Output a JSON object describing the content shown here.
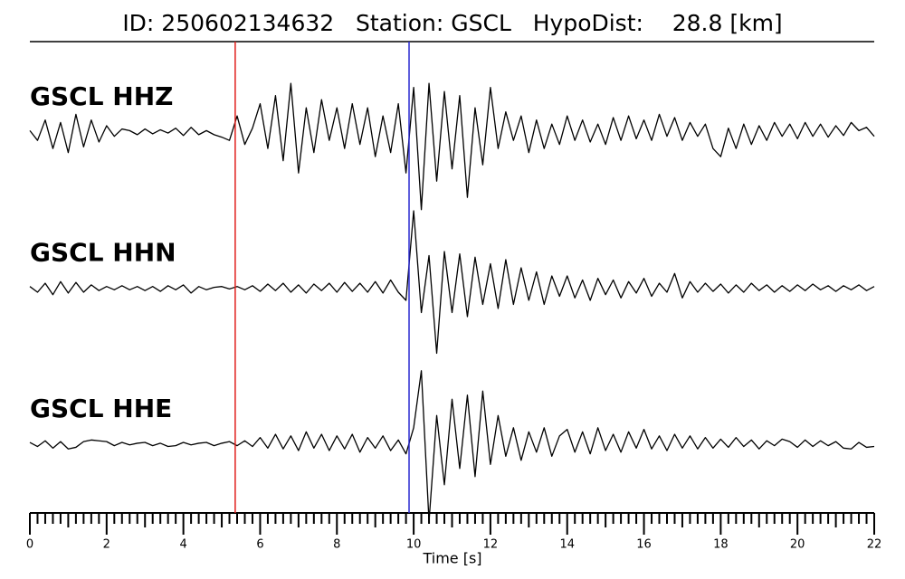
{
  "chart_data": {
    "type": "seismogram",
    "title": "ID: 250602134632   Station: GSCL   HypoDist:    28.8 [km]",
    "xlabel": "Time [s]",
    "xlim": [
      0,
      22
    ],
    "xticks": [
      0,
      2,
      4,
      6,
      8,
      10,
      12,
      14,
      16,
      18,
      20,
      22
    ],
    "xminorticks": [
      0.2,
      0.4,
      0.6,
      0.8,
      1,
      1.2,
      1.4,
      1.6,
      1.8,
      2.2,
      2.4,
      2.6,
      2.8,
      3,
      3.2,
      3.4,
      3.6,
      3.8,
      4.2,
      4.4,
      4.6,
      4.8,
      5,
      5.2,
      5.4,
      5.6,
      5.8,
      6.2,
      6.4,
      6.6,
      6.8,
      7,
      7.2,
      7.4,
      7.6,
      7.8,
      8.2,
      8.4,
      8.6,
      8.8,
      9,
      9.2,
      9.4,
      9.6,
      9.8,
      10.2,
      10.4,
      10.6,
      10.8,
      11,
      11.2,
      11.4,
      11.6,
      11.8,
      12.2,
      12.4,
      12.6,
      12.8,
      13,
      13.2,
      13.4,
      13.6,
      13.8,
      14.2,
      14.4,
      14.6,
      14.8,
      15,
      15.2,
      15.4,
      15.6,
      15.8,
      16.2,
      16.4,
      16.6,
      16.8,
      17,
      17.2,
      17.4,
      17.6,
      17.8,
      18.2,
      18.4,
      18.6,
      18.8,
      19,
      19.2,
      19.4,
      19.6,
      19.8,
      20.2,
      20.4,
      20.6,
      20.8,
      21,
      21.2,
      21.4,
      21.6,
      21.8
    ],
    "ylim": [
      -1,
      1
    ],
    "label_color": "#4c9a0a",
    "picks": [
      {
        "time": 5.35,
        "color": "#e0201c"
      },
      {
        "time": 9.88,
        "color": "#2a2ad0"
      }
    ],
    "x": [
      0,
      0.2,
      0.4,
      0.6,
      0.8,
      1,
      1.2,
      1.4,
      1.6,
      1.8,
      2,
      2.2,
      2.4,
      2.6,
      2.8,
      3,
      3.2,
      3.4,
      3.6,
      3.8,
      4,
      4.2,
      4.4,
      4.6,
      4.8,
      5,
      5.2,
      5.4,
      5.6,
      5.8,
      6,
      6.2,
      6.4,
      6.6,
      6.8,
      7,
      7.2,
      7.4,
      7.6,
      7.8,
      8,
      8.2,
      8.4,
      8.6,
      8.8,
      9,
      9.2,
      9.4,
      9.6,
      9.8,
      10,
      10.2,
      10.4,
      10.6,
      10.8,
      11,
      11.2,
      11.4,
      11.6,
      11.8,
      12,
      12.2,
      12.4,
      12.6,
      12.8,
      13,
      13.2,
      13.4,
      13.6,
      13.8,
      14,
      14.2,
      14.4,
      14.6,
      14.8,
      15,
      15.2,
      15.4,
      15.6,
      15.8,
      16,
      16.2,
      16.4,
      16.6,
      16.8,
      17,
      17.2,
      17.4,
      17.6,
      17.8,
      18,
      18.2,
      18.4,
      18.6,
      18.8,
      19,
      19.2,
      19.4,
      19.6,
      19.8,
      20,
      20.2,
      20.4,
      20.6,
      20.8,
      21,
      21.2,
      21.4,
      21.6,
      21.8,
      22
    ],
    "series": [
      {
        "name": "GSCL HHZ",
        "color": "#000000",
        "values": [
          0.02,
          -0.1,
          0.15,
          -0.2,
          0.12,
          -0.25,
          0.22,
          -0.18,
          0.15,
          -0.12,
          0.08,
          -0.05,
          0.04,
          0.02,
          -0.03,
          0.04,
          -0.02,
          0.03,
          -0.01,
          0.05,
          -0.04,
          0.06,
          -0.03,
          0.02,
          -0.03,
          -0.06,
          -0.1,
          0.2,
          -0.15,
          0.05,
          0.35,
          -0.2,
          0.45,
          -0.35,
          0.6,
          -0.5,
          0.3,
          -0.25,
          0.4,
          -0.1,
          0.3,
          -0.2,
          0.35,
          -0.15,
          0.3,
          -0.3,
          0.2,
          -0.25,
          0.35,
          -0.5,
          0.55,
          -0.95,
          0.6,
          -0.6,
          0.5,
          -0.45,
          0.45,
          -0.8,
          0.3,
          -0.4,
          0.55,
          -0.2,
          0.25,
          -0.1,
          0.2,
          -0.25,
          0.15,
          -0.2,
          0.1,
          -0.15,
          0.2,
          -0.1,
          0.15,
          -0.12,
          0.1,
          -0.15,
          0.18,
          -0.1,
          0.2,
          -0.08,
          0.15,
          -0.1,
          0.22,
          -0.05,
          0.18,
          -0.1,
          0.12,
          -0.05,
          0.1,
          -0.2,
          -0.3,
          0.05,
          -0.2,
          0.1,
          -0.15,
          0.08,
          -0.1,
          0.12,
          -0.05,
          0.1,
          -0.08,
          0.12,
          -0.05,
          0.1,
          -0.06,
          0.08,
          -0.04,
          0.12,
          0.02,
          0.06,
          -0.05
        ]
      },
      {
        "name": "GSCL HHN",
        "color": "#000000",
        "values": [
          0.02,
          -0.05,
          0.06,
          -0.08,
          0.08,
          -0.06,
          0.07,
          -0.05,
          0.04,
          -0.03,
          0.02,
          -0.02,
          0.03,
          -0.02,
          0.02,
          -0.03,
          0.02,
          -0.04,
          0.03,
          -0.02,
          0.04,
          -0.06,
          0.02,
          -0.02,
          0.01,
          0.02,
          -0.01,
          0.02,
          -0.02,
          0.03,
          -0.04,
          0.05,
          -0.03,
          0.06,
          -0.05,
          0.04,
          -0.06,
          0.05,
          -0.03,
          0.06,
          -0.05,
          0.07,
          -0.04,
          0.06,
          -0.05,
          0.08,
          -0.06,
          0.1,
          -0.05,
          -0.15,
          0.95,
          -0.3,
          0.4,
          -0.8,
          0.45,
          -0.3,
          0.42,
          -0.35,
          0.38,
          -0.2,
          0.3,
          -0.25,
          0.35,
          -0.2,
          0.25,
          -0.15,
          0.2,
          -0.2,
          0.15,
          -0.1,
          0.15,
          -0.12,
          0.1,
          -0.15,
          0.12,
          -0.08,
          0.1,
          -0.12,
          0.08,
          -0.06,
          0.12,
          -0.1,
          0.06,
          -0.05,
          0.18,
          -0.12,
          0.08,
          -0.05,
          0.06,
          -0.04,
          0.05,
          -0.06,
          0.04,
          -0.05,
          0.06,
          -0.03,
          0.04,
          -0.05,
          0.03,
          -0.04,
          0.04,
          -0.03,
          0.05,
          -0.02,
          0.03,
          -0.04,
          0.03,
          -0.02,
          0.04,
          -0.03,
          0.02
        ]
      },
      {
        "name": "GSCL HHE",
        "color": "#000000",
        "values": [
          0.02,
          -0.03,
          0.04,
          -0.05,
          0.03,
          -0.06,
          -0.04,
          0.03,
          0.05,
          0.04,
          0.03,
          -0.02,
          0.02,
          -0.01,
          0.01,
          0.02,
          -0.02,
          0.01,
          -0.03,
          -0.02,
          0.02,
          -0.01,
          0.01,
          0.02,
          -0.02,
          0.01,
          0.03,
          -0.02,
          0.04,
          -0.03,
          0.08,
          -0.05,
          0.12,
          -0.06,
          0.1,
          -0.08,
          0.15,
          -0.05,
          0.12,
          -0.08,
          0.1,
          -0.06,
          0.12,
          -0.1,
          0.08,
          -0.05,
          0.1,
          -0.08,
          0.05,
          -0.12,
          0.2,
          0.9,
          -0.95,
          0.35,
          -0.5,
          0.55,
          -0.3,
          0.6,
          -0.4,
          0.65,
          -0.25,
          0.35,
          -0.15,
          0.2,
          -0.2,
          0.15,
          -0.1,
          0.2,
          -0.15,
          0.1,
          0.18,
          -0.1,
          0.15,
          -0.12,
          0.2,
          -0.08,
          0.12,
          -0.1,
          0.15,
          -0.05,
          0.18,
          -0.06,
          0.1,
          -0.08,
          0.12,
          -0.05,
          0.1,
          -0.06,
          0.08,
          -0.05,
          0.06,
          -0.04,
          0.08,
          -0.03,
          0.05,
          -0.06,
          0.04,
          -0.02,
          0.06,
          0.03,
          -0.04,
          0.05,
          -0.03,
          0.04,
          -0.02,
          0.03,
          -0.05,
          -0.06,
          0.02,
          -0.04,
          -0.03
        ]
      }
    ]
  }
}
